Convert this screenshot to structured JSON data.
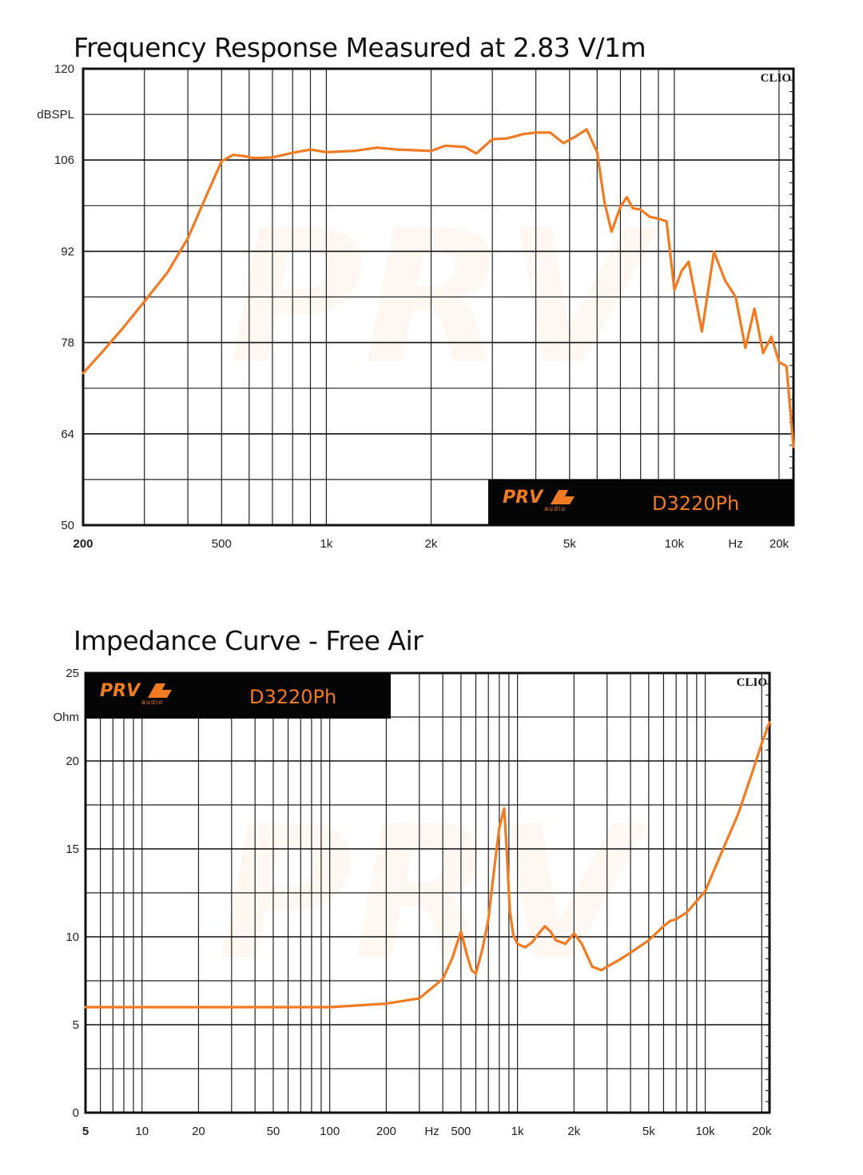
{
  "chart_data": [
    {
      "type": "line",
      "title": "Frequency Response Measured at 2.83 V/1m",
      "ylabel": "dBSPL",
      "xlabel": "Hz",
      "x_scale": "log",
      "xlim": [
        200,
        22000
      ],
      "ylim": [
        50,
        120
      ],
      "y_ticks": [
        "120",
        "dBSPL",
        "106",
        "92",
        "78",
        "64",
        "50"
      ],
      "x_ticks": [
        "200",
        "500",
        "1k",
        "2k",
        "5k",
        "10k",
        "Hz",
        "20k"
      ],
      "brand_box": {
        "logo": "PRV",
        "logo_sub": "audio",
        "model": "D3220Ph",
        "position": "bottom-right"
      },
      "clio_label": "CLIO",
      "series": [
        {
          "color": "#f07b22",
          "x": [
            200,
            230,
            260,
            300,
            350,
            400,
            450,
            500,
            540,
            580,
            620,
            700,
            800,
            900,
            1000,
            1200,
            1400,
            1600,
            1800,
            2000,
            2200,
            2500,
            2700,
            3000,
            3300,
            3700,
            4000,
            4400,
            4800,
            5200,
            5600,
            6000,
            6300,
            6600,
            7000,
            7300,
            7600,
            8000,
            8500,
            9000,
            9500,
            10000,
            10500,
            11000,
            12000,
            13000,
            14000,
            15000,
            16000,
            17000,
            18000,
            19000,
            20000,
            21000,
            22000
          ],
          "y": [
            73.3,
            76.9,
            80.2,
            84.3,
            88.8,
            94.0,
            100.3,
            105.8,
            106.8,
            106.6,
            106.3,
            106.4,
            107.1,
            107.6,
            107.2,
            107.4,
            107.9,
            107.6,
            107.5,
            107.4,
            108.2,
            108.0,
            107.0,
            109.2,
            109.3,
            110.0,
            110.2,
            110.2,
            108.6,
            109.6,
            110.7,
            107.2,
            99.5,
            95.0,
            98.8,
            100.3,
            98.6,
            98.4,
            97.3,
            97.0,
            96.6,
            86.1,
            89.0,
            90.4,
            79.7,
            91.9,
            87.5,
            85.0,
            77.2,
            83.2,
            76.4,
            78.9,
            75.0,
            74.4,
            62.0
          ]
        }
      ]
    },
    {
      "type": "line",
      "title": "Impedance Curve - Free Air",
      "ylabel": "Ohm",
      "xlabel": "Hz",
      "x_scale": "log",
      "xlim": [
        5,
        22000
      ],
      "ylim": [
        0,
        25
      ],
      "y_ticks": [
        "25",
        "Ohm",
        "20",
        "15",
        "10",
        "5",
        "0"
      ],
      "x_ticks": [
        "5",
        "10",
        "20",
        "50",
        "100",
        "200",
        "Hz",
        "500",
        "1k",
        "2k",
        "5k",
        "10k",
        "20k"
      ],
      "brand_box": {
        "logo": "PRV",
        "logo_sub": "audio",
        "model": "D3220Ph",
        "position": "top-left"
      },
      "clio_label": "CLIO",
      "series": [
        {
          "color": "#f07b22",
          "x": [
            5,
            10,
            20,
            50,
            100,
            200,
            300,
            400,
            450,
            500,
            540,
            570,
            600,
            650,
            700,
            750,
            800,
            850,
            880,
            910,
            950,
            1000,
            1100,
            1200,
            1300,
            1400,
            1500,
            1600,
            1800,
            2000,
            2200,
            2500,
            2800,
            3000,
            3500,
            4000,
            5000,
            6000,
            6500,
            7000,
            8000,
            10000,
            12000,
            15000,
            18000,
            20000,
            22000
          ],
          "y": [
            6.0,
            6.0,
            6.0,
            6.0,
            6.0,
            6.2,
            6.5,
            7.6,
            8.8,
            10.3,
            8.9,
            8.1,
            7.9,
            9.3,
            11.0,
            13.8,
            16.2,
            17.3,
            14.5,
            11.5,
            10.1,
            9.6,
            9.4,
            9.7,
            10.2,
            10.6,
            10.3,
            9.8,
            9.6,
            10.2,
            9.6,
            8.3,
            8.1,
            8.3,
            8.7,
            9.1,
            9.8,
            10.6,
            10.9,
            11.0,
            11.4,
            12.6,
            14.6,
            17.0,
            19.5,
            21.0,
            22.2
          ]
        }
      ]
    }
  ]
}
